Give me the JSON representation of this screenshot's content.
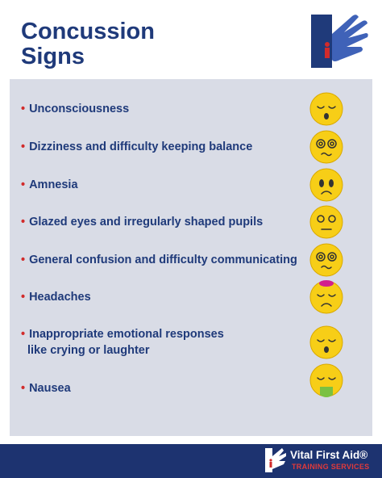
{
  "header": {
    "title": [
      "Concussion",
      "Signs"
    ]
  },
  "signs": [
    [
      "Unconsciousness"
    ],
    [
      "Dizziness and difficulty keeping balance"
    ],
    [
      "Amnesia"
    ],
    [
      "Glazed eyes and irregularly shaped pupils"
    ],
    [
      "General confusion and difficulty communicating"
    ],
    [
      "Headaches"
    ],
    [
      "Inappropriate emotional responses",
      "like crying or laughter"
    ],
    [
      "Nausea"
    ]
  ],
  "footer": {
    "brand": "Vital First Aid®",
    "subtitle": "TRAINING SERVICES"
  }
}
